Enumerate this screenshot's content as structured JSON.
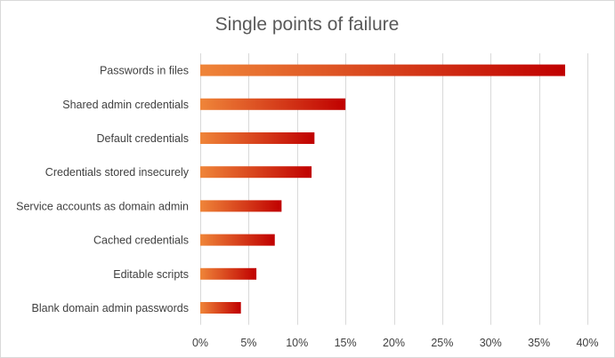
{
  "chart_data": {
    "type": "bar",
    "orientation": "horizontal",
    "title": "Single points of failure",
    "categories": [
      "Passwords in files",
      "Shared admin credentials",
      "Default credentials",
      "Credentials stored insecurely",
      "Service accounts as domain admin",
      "Cached credentials",
      "Editable scripts",
      "Blank domain admin passwords"
    ],
    "values": [
      37.7,
      15.0,
      11.8,
      11.5,
      8.4,
      7.7,
      5.8,
      4.2
    ],
    "xlim": [
      0,
      40
    ],
    "x_ticks": [
      0,
      5,
      10,
      15,
      20,
      25,
      30,
      35,
      40
    ],
    "x_tick_labels": [
      "0%",
      "5%",
      "10%",
      "15%",
      "20%",
      "25%",
      "30%",
      "35%",
      "40%"
    ],
    "xlabel": "",
    "ylabel": "",
    "grid": "vertical",
    "legend": "none",
    "bar_gradient": [
      "#ef8539",
      "#c00000"
    ]
  }
}
